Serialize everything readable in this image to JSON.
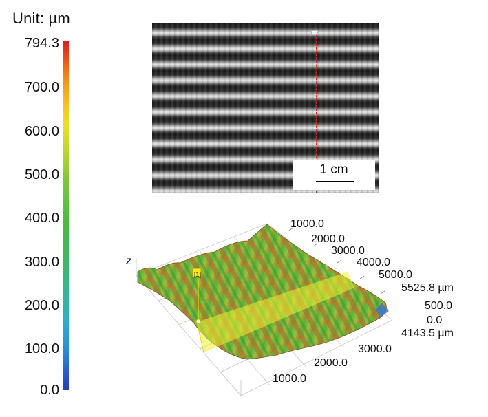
{
  "colorbar": {
    "unit_label": "Unit: µm",
    "ticks": [
      "794.3",
      "700.0",
      "600.0",
      "500.0",
      "400.0",
      "300.0",
      "200.0",
      "100.0",
      "0.0"
    ]
  },
  "photo": {
    "scale_label": "1 cm"
  },
  "surface_plot": {
    "z_axis_label": "z",
    "marker_label": "[1]",
    "x_axis_ticks": [
      "1000.0",
      "2000.0",
      "3000.0",
      "4000.0",
      "5000.0"
    ],
    "x_axis_max": "5525.8 µm",
    "z_axis_ticks": [
      "500.0",
      "0.0"
    ],
    "y_axis_max": "4143.5 µm",
    "y_axis_ticks": [
      "3000.0",
      "2000.0",
      "1000.0"
    ]
  }
}
